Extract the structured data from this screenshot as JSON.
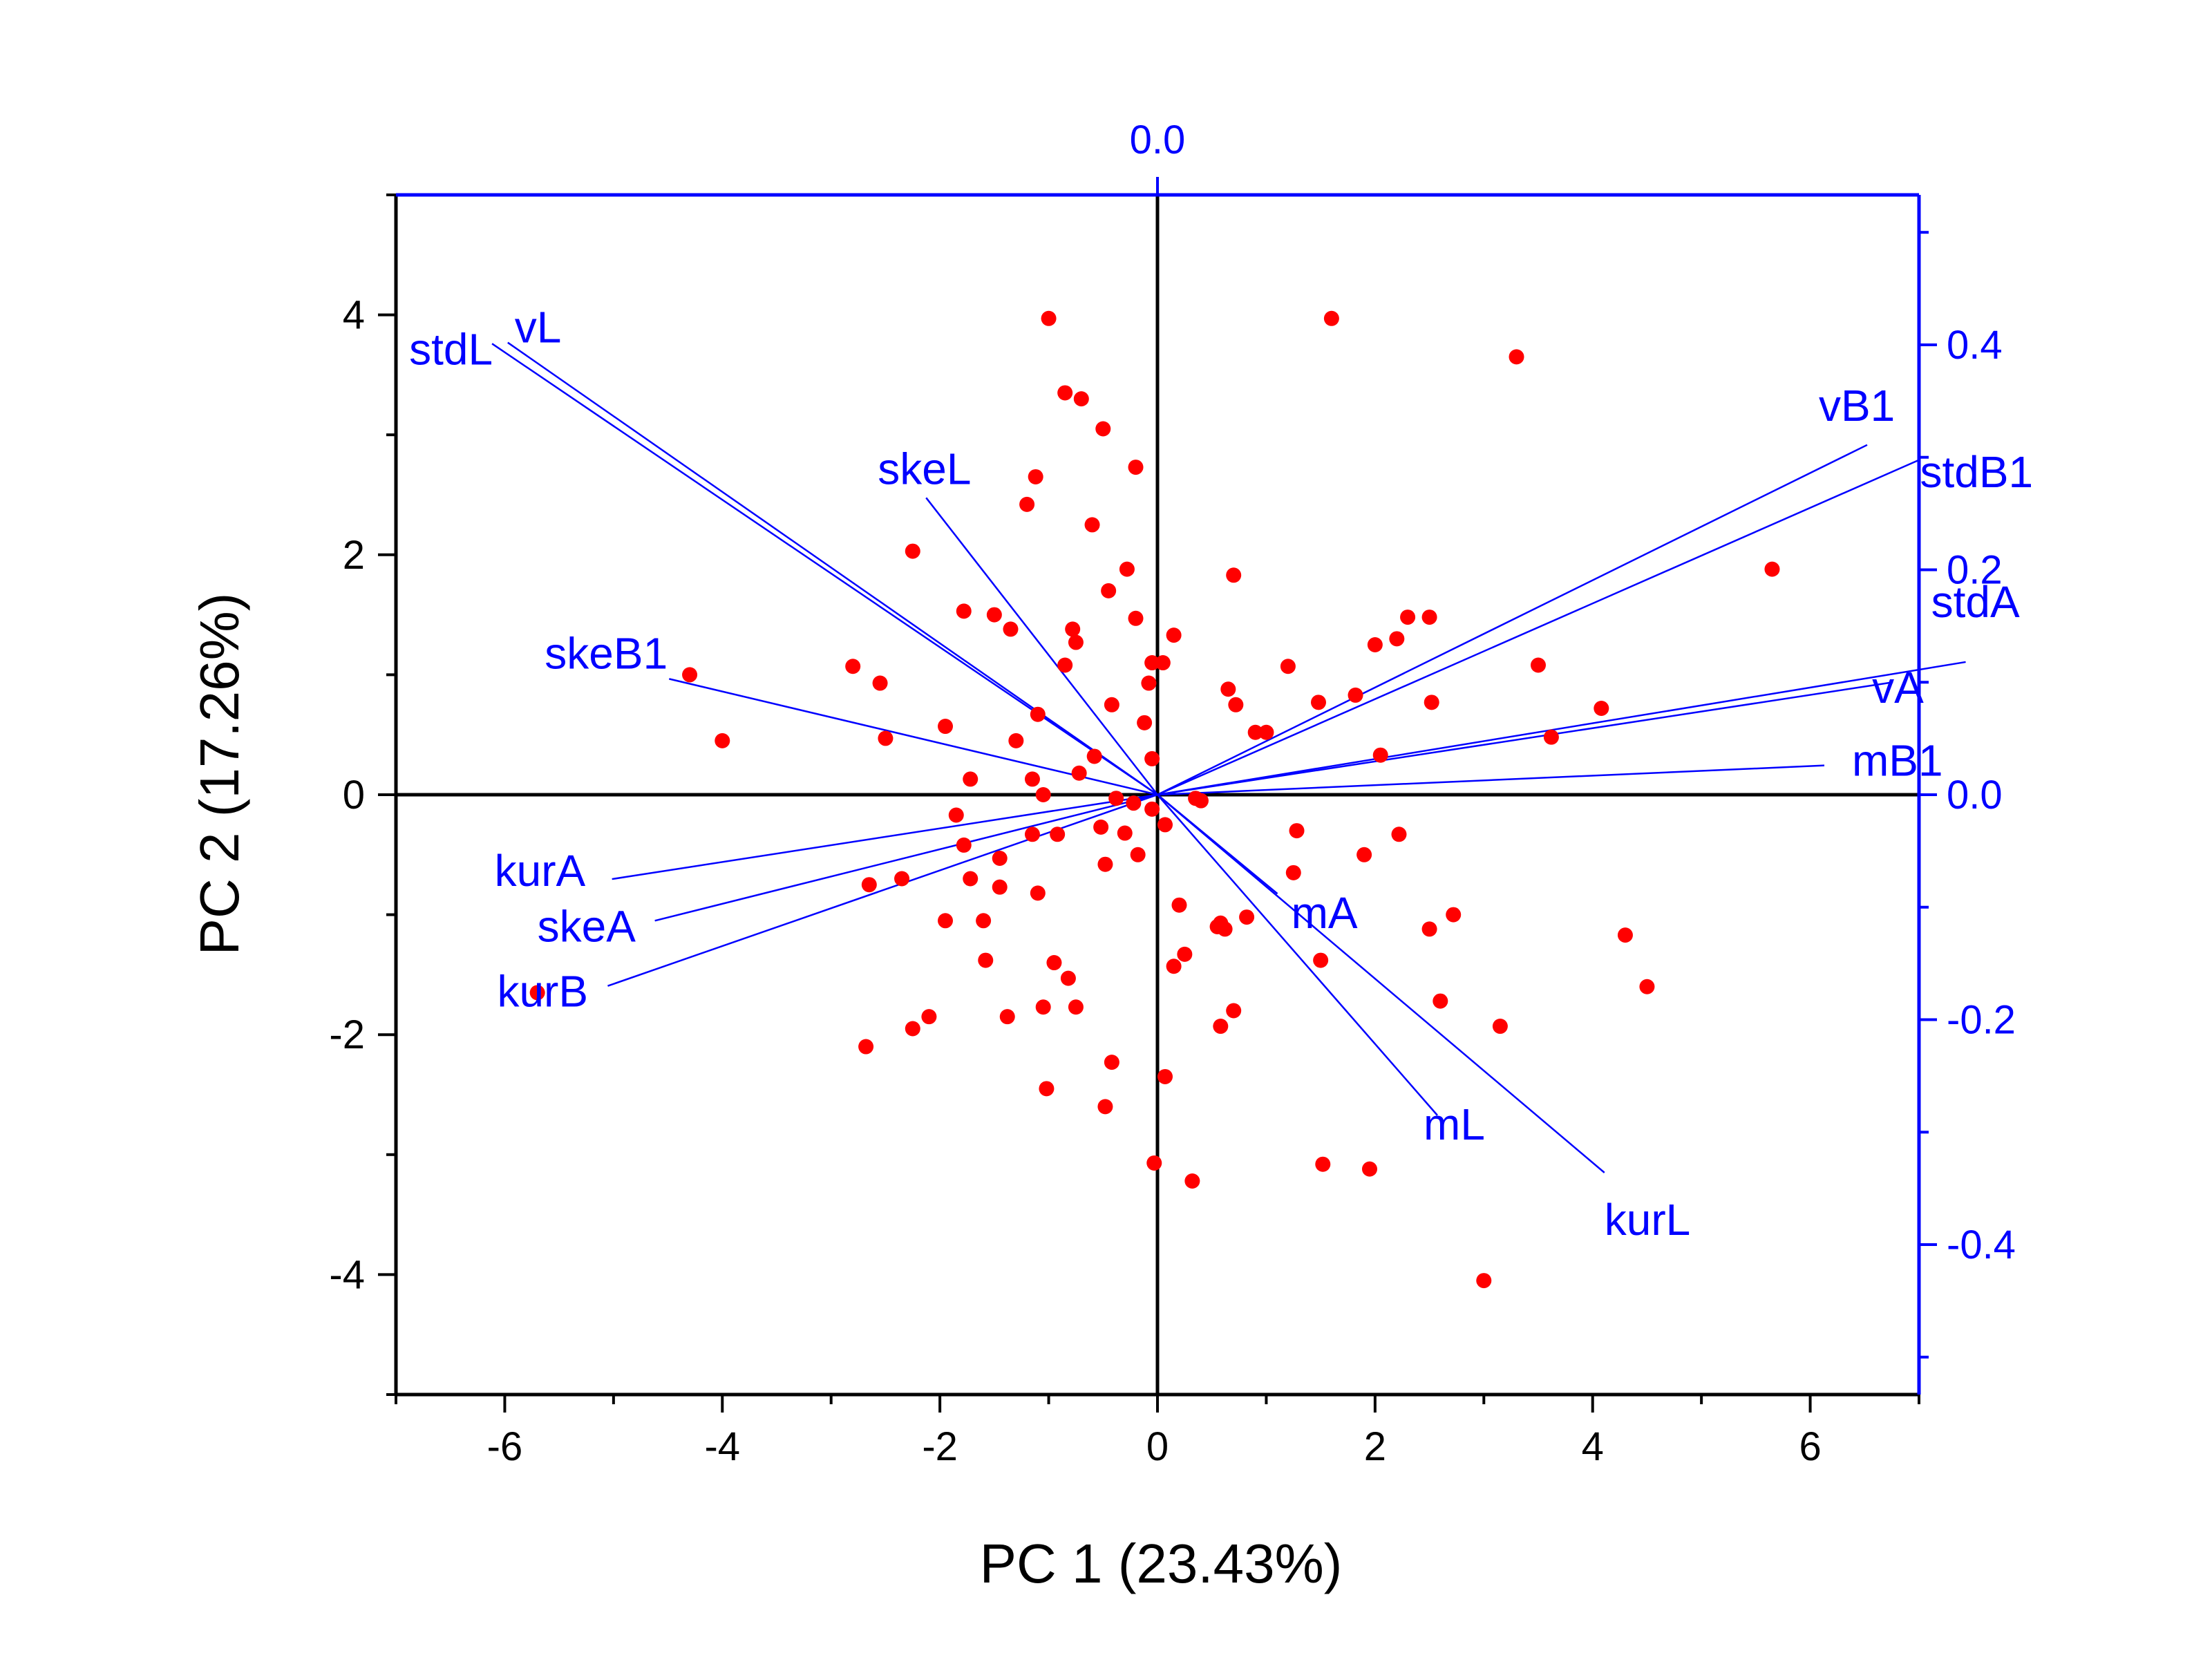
{
  "chart_data": {
    "type": "scatter",
    "subtype": "biplot",
    "xlabel": "PC 1 (23.43%)",
    "ylabel": "PC 2 (17.26%)",
    "xlim": [
      -7,
      7
    ],
    "ylim": [
      -5,
      5
    ],
    "x_ticks": [
      -6,
      -4,
      -2,
      0,
      2,
      4,
      6
    ],
    "y_ticks": [
      -4,
      -2,
      0,
      2,
      4
    ],
    "top_axis": {
      "ticks": [
        0.0
      ],
      "tick_labels": [
        "0.0"
      ],
      "color": "#0000ff"
    },
    "right_axis": {
      "ylim": [
        -0.5333,
        0.5333
      ],
      "ticks": [
        -0.4,
        -0.2,
        0.0,
        0.2,
        0.4
      ],
      "tick_labels": [
        "-0.4",
        "-0.2",
        "0.0",
        "0.2",
        "0.4"
      ],
      "color": "#0000ff"
    },
    "grid": false,
    "zero_lines": true,
    "colors": {
      "points": "#ff0000",
      "loadings": "#0000ff",
      "axes": "#000000"
    },
    "scores": [
      [
        -5.7,
        -1.65
      ],
      [
        -4.3,
        1.0
      ],
      [
        -4.0,
        0.45
      ],
      [
        -2.8,
        1.07
      ],
      [
        -2.55,
        0.93
      ],
      [
        -2.5,
        0.47
      ],
      [
        -2.25,
        2.03
      ],
      [
        -2.65,
        -0.75
      ],
      [
        -2.35,
        -0.7
      ],
      [
        -2.25,
        -1.95
      ],
      [
        -2.1,
        -1.85
      ],
      [
        -2.68,
        -2.1
      ],
      [
        -1.95,
        0.57
      ],
      [
        -1.85,
        -0.17
      ],
      [
        -1.78,
        1.53
      ],
      [
        -1.72,
        0.13
      ],
      [
        -1.78,
        -0.42
      ],
      [
        -1.72,
        -0.7
      ],
      [
        -1.95,
        -1.05
      ],
      [
        -1.6,
        -1.05
      ],
      [
        -1.58,
        -1.38
      ],
      [
        -1.5,
        1.5
      ],
      [
        -1.45,
        -0.53
      ],
      [
        -1.45,
        -0.77
      ],
      [
        -1.38,
        -1.85
      ],
      [
        -1.35,
        1.38
      ],
      [
        -1.3,
        0.45
      ],
      [
        -1.2,
        2.42
      ],
      [
        -1.15,
        0.13
      ],
      [
        -1.15,
        -0.33
      ],
      [
        -1.12,
        2.65
      ],
      [
        -1.1,
        0.67
      ],
      [
        -1.1,
        -0.82
      ],
      [
        -1.05,
        0.0
      ],
      [
        -1.0,
        3.97
      ],
      [
        -1.05,
        -1.77
      ],
      [
        -1.02,
        -2.45
      ],
      [
        -0.95,
        -1.4
      ],
      [
        -0.92,
        -0.33
      ],
      [
        -0.85,
        1.08
      ],
      [
        -0.85,
        3.35
      ],
      [
        -0.82,
        -1.53
      ],
      [
        -0.78,
        1.38
      ],
      [
        -0.75,
        1.27
      ],
      [
        -0.75,
        -1.77
      ],
      [
        -0.72,
        0.18
      ],
      [
        -0.7,
        3.3
      ],
      [
        -0.6,
        2.25
      ],
      [
        -0.58,
        0.32
      ],
      [
        -0.5,
        3.05
      ],
      [
        -0.52,
        -0.27
      ],
      [
        -0.48,
        -0.58
      ],
      [
        -0.48,
        -2.6
      ],
      [
        -0.45,
        1.7
      ],
      [
        -0.42,
        -2.23
      ],
      [
        -0.42,
        0.75
      ],
      [
        -0.38,
        -0.03
      ],
      [
        -0.3,
        -0.32
      ],
      [
        -0.28,
        1.88
      ],
      [
        -0.22,
        -0.07
      ],
      [
        -0.2,
        2.73
      ],
      [
        -0.2,
        1.47
      ],
      [
        -0.18,
        -0.5
      ],
      [
        -0.12,
        0.6
      ],
      [
        -0.08,
        0.93
      ],
      [
        -0.05,
        1.1
      ],
      [
        -0.05,
        0.3
      ],
      [
        -0.05,
        -0.12
      ],
      [
        -0.03,
        -3.07
      ],
      [
        0.05,
        1.1
      ],
      [
        0.07,
        -0.25
      ],
      [
        0.07,
        -2.35
      ],
      [
        0.15,
        1.33
      ],
      [
        0.15,
        -1.43
      ],
      [
        0.2,
        -0.92
      ],
      [
        0.25,
        -1.33
      ],
      [
        0.32,
        -3.22
      ],
      [
        0.35,
        -0.03
      ],
      [
        0.4,
        -0.05
      ],
      [
        0.55,
        -1.1
      ],
      [
        0.58,
        -1.07
      ],
      [
        0.58,
        -1.93
      ],
      [
        0.62,
        -1.12
      ],
      [
        0.65,
        0.88
      ],
      [
        0.7,
        1.83
      ],
      [
        0.72,
        0.75
      ],
      [
        0.7,
        -1.8
      ],
      [
        0.82,
        -1.02
      ],
      [
        0.9,
        0.52
      ],
      [
        1.0,
        0.52
      ],
      [
        1.2,
        1.07
      ],
      [
        1.25,
        -0.65
      ],
      [
        1.28,
        -0.3
      ],
      [
        1.48,
        0.77
      ],
      [
        1.5,
        -1.38
      ],
      [
        1.52,
        -3.08
      ],
      [
        1.6,
        3.97
      ],
      [
        1.82,
        0.83
      ],
      [
        1.9,
        -0.5
      ],
      [
        1.95,
        -3.12
      ],
      [
        2.0,
        1.25
      ],
      [
        2.05,
        0.33
      ],
      [
        2.2,
        1.3
      ],
      [
        2.22,
        -0.33
      ],
      [
        2.3,
        1.48
      ],
      [
        2.5,
        1.48
      ],
      [
        2.52,
        0.77
      ],
      [
        2.5,
        -1.12
      ],
      [
        2.6,
        -1.72
      ],
      [
        2.72,
        -1.0
      ],
      [
        3.0,
        -4.05
      ],
      [
        3.15,
        -1.93
      ],
      [
        3.3,
        3.65
      ],
      [
        3.5,
        1.08
      ],
      [
        3.62,
        0.48
      ],
      [
        4.08,
        0.72
      ],
      [
        4.3,
        -1.17
      ],
      [
        4.5,
        -1.6
      ],
      [
        5.65,
        1.88
      ]
    ],
    "loadings": [
      {
        "name": "vL",
        "x": -0.455,
        "y": 0.402
      },
      {
        "name": "stdL",
        "x": -0.466,
        "y": 0.401
      },
      {
        "name": "skeL",
        "x": -0.162,
        "y": 0.264
      },
      {
        "name": "skeB1",
        "x": -0.342,
        "y": 0.103
      },
      {
        "name": "vB1",
        "x": 0.497,
        "y": 0.311
      },
      {
        "name": "stdB1",
        "x": 0.534,
        "y": 0.298
      },
      {
        "name": "stdA",
        "x": 0.566,
        "y": 0.118
      },
      {
        "name": "vA",
        "x": 0.515,
        "y": 0.1
      },
      {
        "name": "mB1",
        "x": 0.467,
        "y": 0.026
      },
      {
        "name": "mA",
        "x": 0.084,
        "y": -0.088
      },
      {
        "name": "mL",
        "x": 0.196,
        "y": -0.285
      },
      {
        "name": "kurL",
        "x": 0.313,
        "y": -0.336
      },
      {
        "name": "kurA",
        "x": -0.382,
        "y": -0.075
      },
      {
        "name": "skeA",
        "x": -0.352,
        "y": -0.112
      },
      {
        "name": "kurB",
        "x": -0.385,
        "y": -0.17
      }
    ]
  }
}
